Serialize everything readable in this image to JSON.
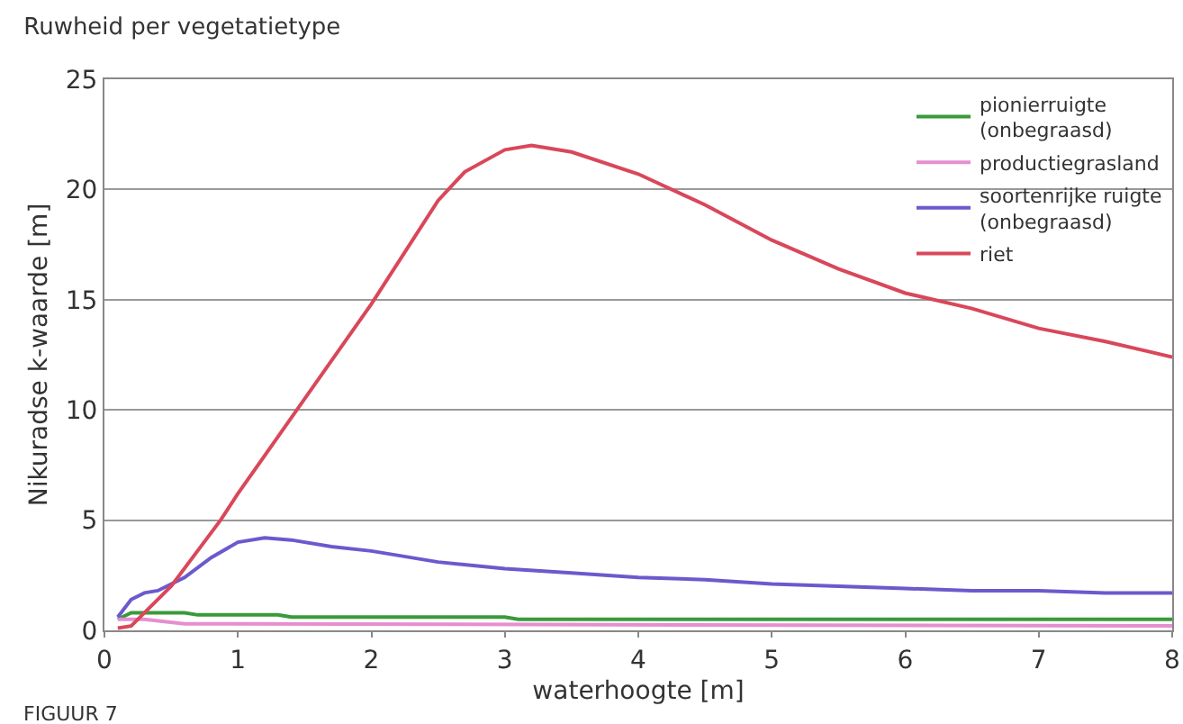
{
  "chart_data": {
    "type": "line",
    "title": "Ruwheid per vegetatietype",
    "xlabel": "waterhoogte [m]",
    "ylabel": "Nikuradse k-waarde [m]",
    "annotations": [
      "FIGUUR 7"
    ],
    "xlim": [
      0,
      8
    ],
    "xticks": [
      0,
      1,
      2,
      3,
      4,
      5,
      6,
      7,
      8
    ],
    "ylim": [
      0,
      25
    ],
    "yticks": [
      0,
      5,
      10,
      15,
      20,
      25
    ],
    "grid": "y",
    "legend": "top right",
    "marker": "none",
    "line_style": "solid",
    "series": [
      {
        "name": "pionierruigte (onbegraasd)",
        "color": "#3a9a3a",
        "x": [
          0.1,
          0.2,
          0.6,
          0.7,
          1.3,
          1.4,
          3,
          3.1,
          8
        ],
        "values": [
          0.5,
          0.8,
          0.8,
          0.7,
          0.7,
          0.6,
          0.6,
          0.5,
          0.5
        ]
      },
      {
        "name": "productiegrasland",
        "color": "#e58fd0",
        "x": [
          0.1,
          0.3,
          0.6,
          8
        ],
        "values": [
          0.5,
          0.5,
          0.3,
          0.2
        ]
      },
      {
        "name": "soortenrijke ruigte (onbegraasd)",
        "color": "#6a5acd",
        "x": [
          0.1,
          0.2,
          0.3,
          0.4,
          0.6,
          0.8,
          1,
          1.2,
          1.4,
          1.7,
          2,
          2.5,
          3,
          3.5,
          4,
          4.5,
          5,
          5.5,
          6,
          6.5,
          7,
          7.5,
          8
        ],
        "values": [
          0.6,
          1.4,
          1.7,
          1.8,
          2.4,
          3.3,
          4,
          4.2,
          4.1,
          3.8,
          3.6,
          3.1,
          2.8,
          2.6,
          2.4,
          2.3,
          2.1,
          2,
          1.9,
          1.8,
          1.8,
          1.7,
          1.7
        ]
      },
      {
        "name": "riet",
        "color": "#d9475a",
        "x": [
          0.1,
          0.2,
          0.5,
          0.87,
          1,
          1.5,
          2,
          2.5,
          2.7,
          3,
          3.2,
          3.5,
          4,
          4.5,
          5,
          5.5,
          6,
          6.5,
          7,
          7.5,
          8
        ],
        "values": [
          0.1,
          0.2,
          2,
          5,
          6.2,
          10.5,
          14.8,
          19.5,
          20.8,
          21.8,
          22,
          21.7,
          20.7,
          19.3,
          17.7,
          16.4,
          15.3,
          14.6,
          13.7,
          13.1,
          12.4
        ]
      }
    ]
  }
}
